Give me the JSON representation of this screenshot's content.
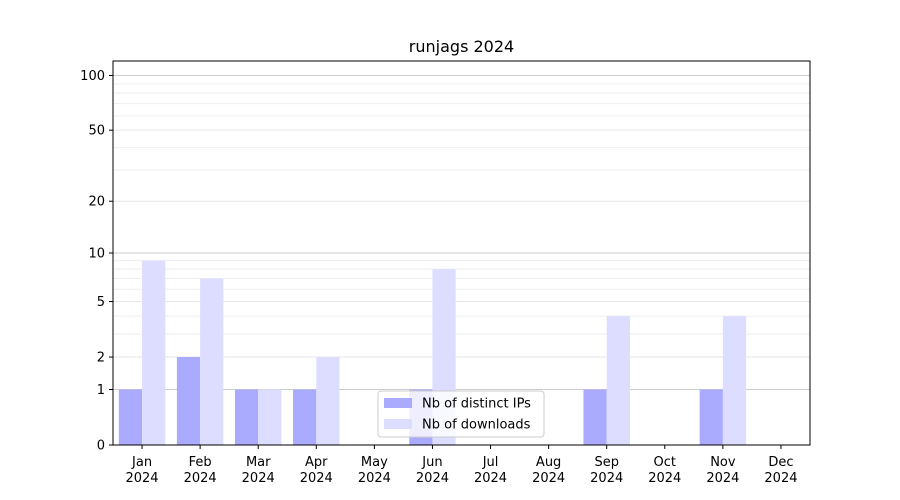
{
  "chart_data": {
    "type": "bar",
    "title": "runjags 2024",
    "categories": [
      "Jan\n2024",
      "Feb\n2024",
      "Mar\n2024",
      "Apr\n2024",
      "May\n2024",
      "Jun\n2024",
      "Jul\n2024",
      "Aug\n2024",
      "Sep\n2024",
      "Oct\n2024",
      "Nov\n2024",
      "Dec\n2024"
    ],
    "series": [
      {
        "name": "Nb of distinct IPs",
        "color": "#aaaaff",
        "values": [
          1,
          2,
          1,
          1,
          0,
          1,
          0,
          0,
          1,
          0,
          1,
          0
        ]
      },
      {
        "name": "Nb of downloads",
        "color": "#ddddff",
        "values": [
          9,
          7,
          1,
          2,
          0,
          8,
          0,
          0,
          4,
          0,
          4,
          0
        ]
      }
    ],
    "yscale": "log(1+y)",
    "ylim": [
      0,
      120
    ],
    "yticks": [
      0,
      1,
      2,
      5,
      10,
      20,
      50,
      100
    ],
    "legend": "lower-center",
    "grid": "y"
  }
}
